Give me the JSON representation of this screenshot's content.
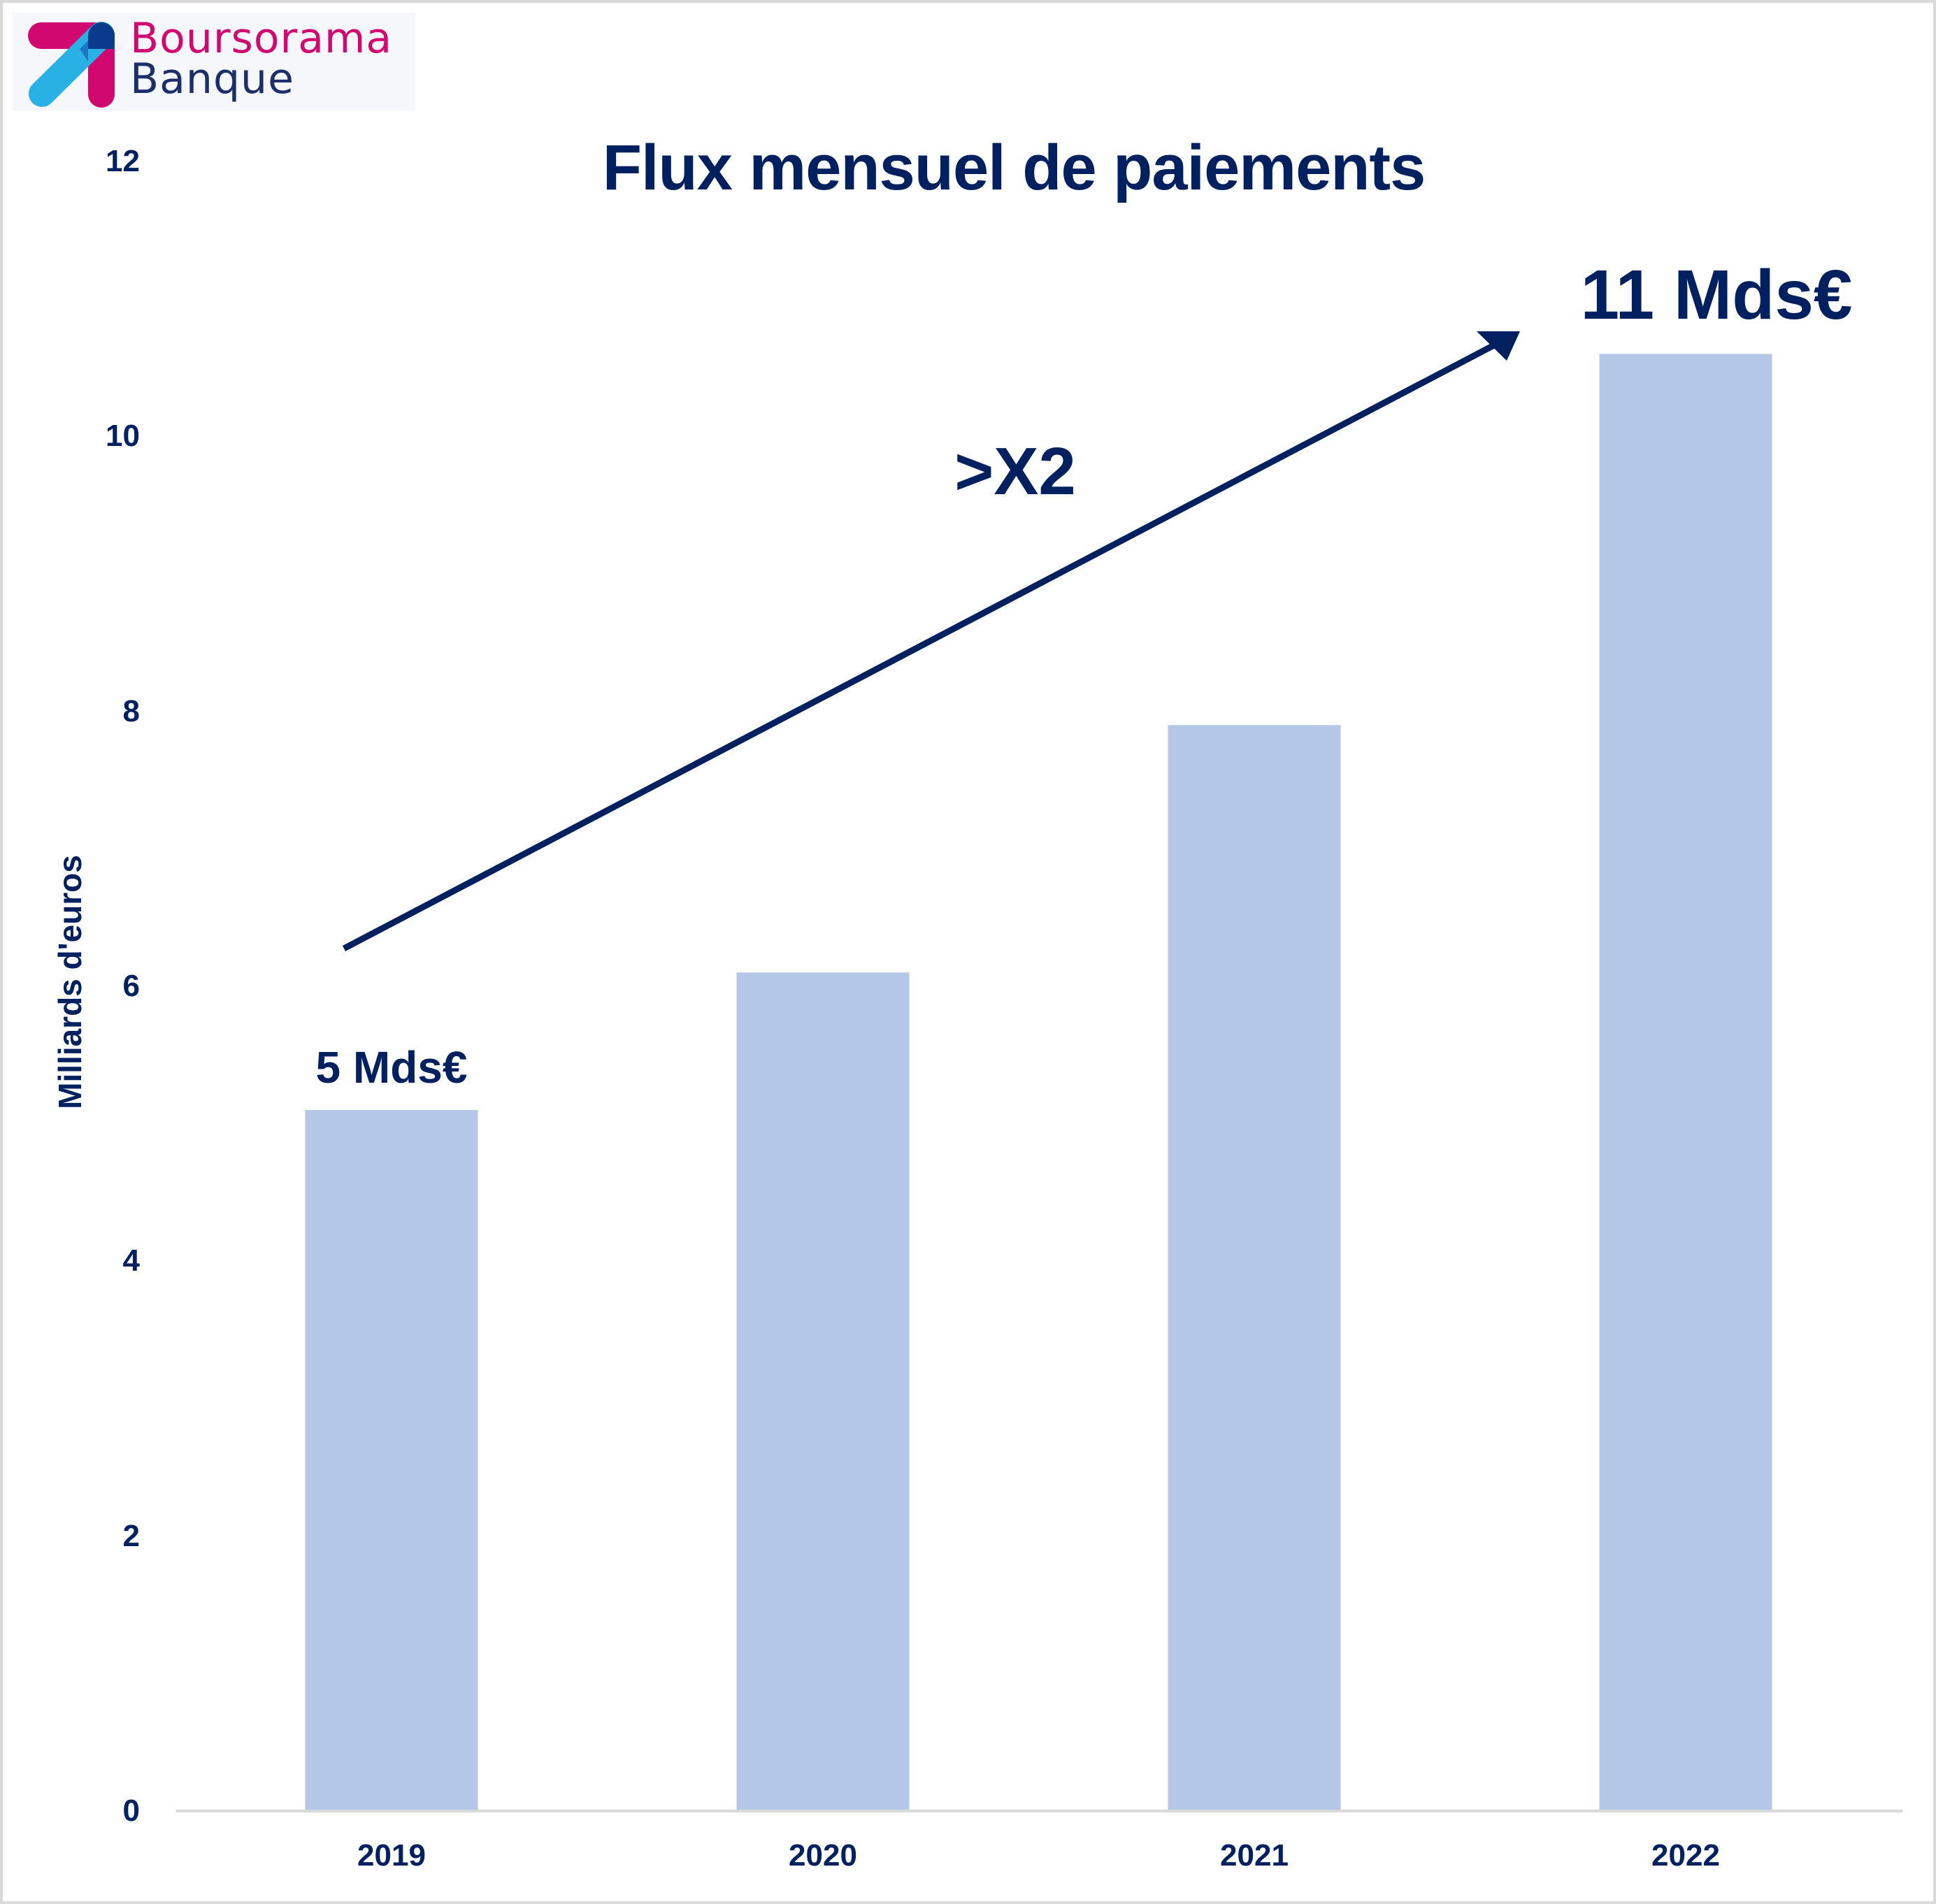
{
  "logo": {
    "line1": "Boursorama",
    "line2": "Banque",
    "colors": {
      "magenta": "#d1086f",
      "navy": "#1c2f6b",
      "cyan": "#29b1e6",
      "dark": "#0a3a8c"
    }
  },
  "colors": {
    "bar": "#b4c7e7",
    "text": "#002060",
    "axis": "#d9d9d9",
    "border": "#d9d9d9"
  },
  "chart_data": {
    "type": "bar",
    "title": "Flux mensuel de paiements",
    "xlabel": "",
    "ylabel": "Milliards d'euros",
    "categories": [
      "2019",
      "2020",
      "2021",
      "2022"
    ],
    "values": [
      5.1,
      6.1,
      7.9,
      10.6
    ],
    "ylim": [
      0,
      12
    ],
    "yticks": [
      "0",
      "2",
      "4",
      "6",
      "8",
      "10",
      "12"
    ],
    "grid": false,
    "legend": null,
    "annotations": [
      {
        "text": "5 Mds€",
        "anchor": "2019"
      },
      {
        "text": "11 Mds€",
        "anchor": "2022"
      },
      {
        "text": ">X2",
        "type": "arrow",
        "from": "2019",
        "to": "2022"
      }
    ]
  }
}
